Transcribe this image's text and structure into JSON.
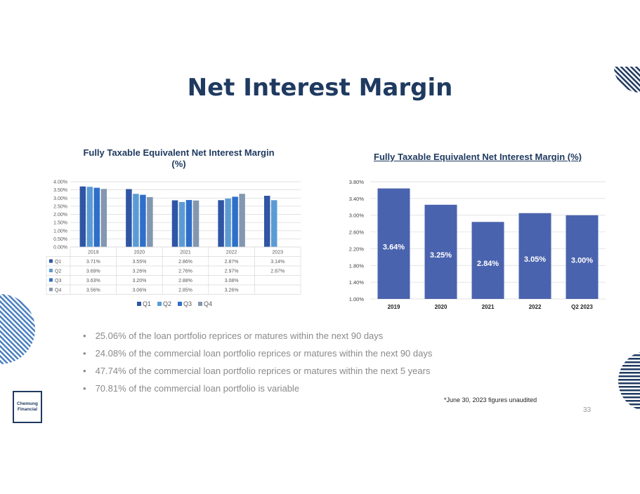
{
  "slide": {
    "title": "Net Interest Margin",
    "bullets": [
      "25.06% of the loan portfolio reprices or matures within the next 90 days",
      "24.08% of the commercial loan portfolio reprices or matures within the next 90 days",
      "47.74% of the commercial loan portfolio reprices or matures within the next 5 years",
      "70.81% of the commercial loan portfolio is variable"
    ],
    "footnote": "*June 30, 2023 figures unaudited",
    "page_number": "33",
    "logo_text": "Chemung Financial"
  },
  "colors": {
    "title": "#1f3a60",
    "q1": "#2f55a4",
    "q2": "#5b9bd5",
    "q3": "#2e6fc9",
    "q4": "#8497b0",
    "bar": "#4a63ae"
  },
  "chart_data": [
    {
      "type": "bar",
      "title": "Fully Taxable Equivalent Net Interest Margin (%)",
      "categories": [
        "2019",
        "2020",
        "2021",
        "2022",
        "2023"
      ],
      "series": [
        {
          "name": "Q1",
          "values": [
            3.71,
            3.55,
            2.86,
            2.87,
            3.14
          ],
          "labels": [
            "3.71%",
            "3.55%",
            "2.86%",
            "2.87%",
            "3.14%"
          ]
        },
        {
          "name": "Q2",
          "values": [
            3.69,
            3.26,
            2.76,
            2.97,
            2.87
          ],
          "labels": [
            "3.69%",
            "3.26%",
            "2.76%",
            "2.97%",
            "2.87%"
          ]
        },
        {
          "name": "Q3",
          "values": [
            3.63,
            3.2,
            2.88,
            3.08,
            null
          ],
          "labels": [
            "3.63%",
            "3.20%",
            "2.88%",
            "3.08%",
            ""
          ]
        },
        {
          "name": "Q4",
          "values": [
            3.56,
            3.06,
            2.85,
            3.26,
            null
          ],
          "labels": [
            "3.56%",
            "3.06%",
            "2.85%",
            "3.26%",
            ""
          ]
        }
      ],
      "ylim": [
        0,
        4
      ],
      "yticks": [
        "0.00%",
        "0.50%",
        "1.00%",
        "1.50%",
        "2.00%",
        "2.50%",
        "3.00%",
        "3.50%",
        "4.00%"
      ],
      "grid": true,
      "legend": "bottom",
      "data_table": true
    },
    {
      "type": "bar",
      "title": "Fully Taxable Equivalent Net Interest Margin (%)",
      "categories": [
        "2019",
        "2020",
        "2021",
        "2022",
        "Q2 2023"
      ],
      "values": [
        3.64,
        3.25,
        2.84,
        3.05,
        3.0
      ],
      "labels": [
        "3.64%",
        "3.25%",
        "2.84%",
        "3.05%",
        "3.00%"
      ],
      "ylim": [
        1.0,
        3.8
      ],
      "yticks": [
        "1.00%",
        "1.40%",
        "1.80%",
        "2.20%",
        "2.60%",
        "3.00%",
        "3.40%",
        "3.80%"
      ],
      "grid": true,
      "legend": "none"
    }
  ]
}
